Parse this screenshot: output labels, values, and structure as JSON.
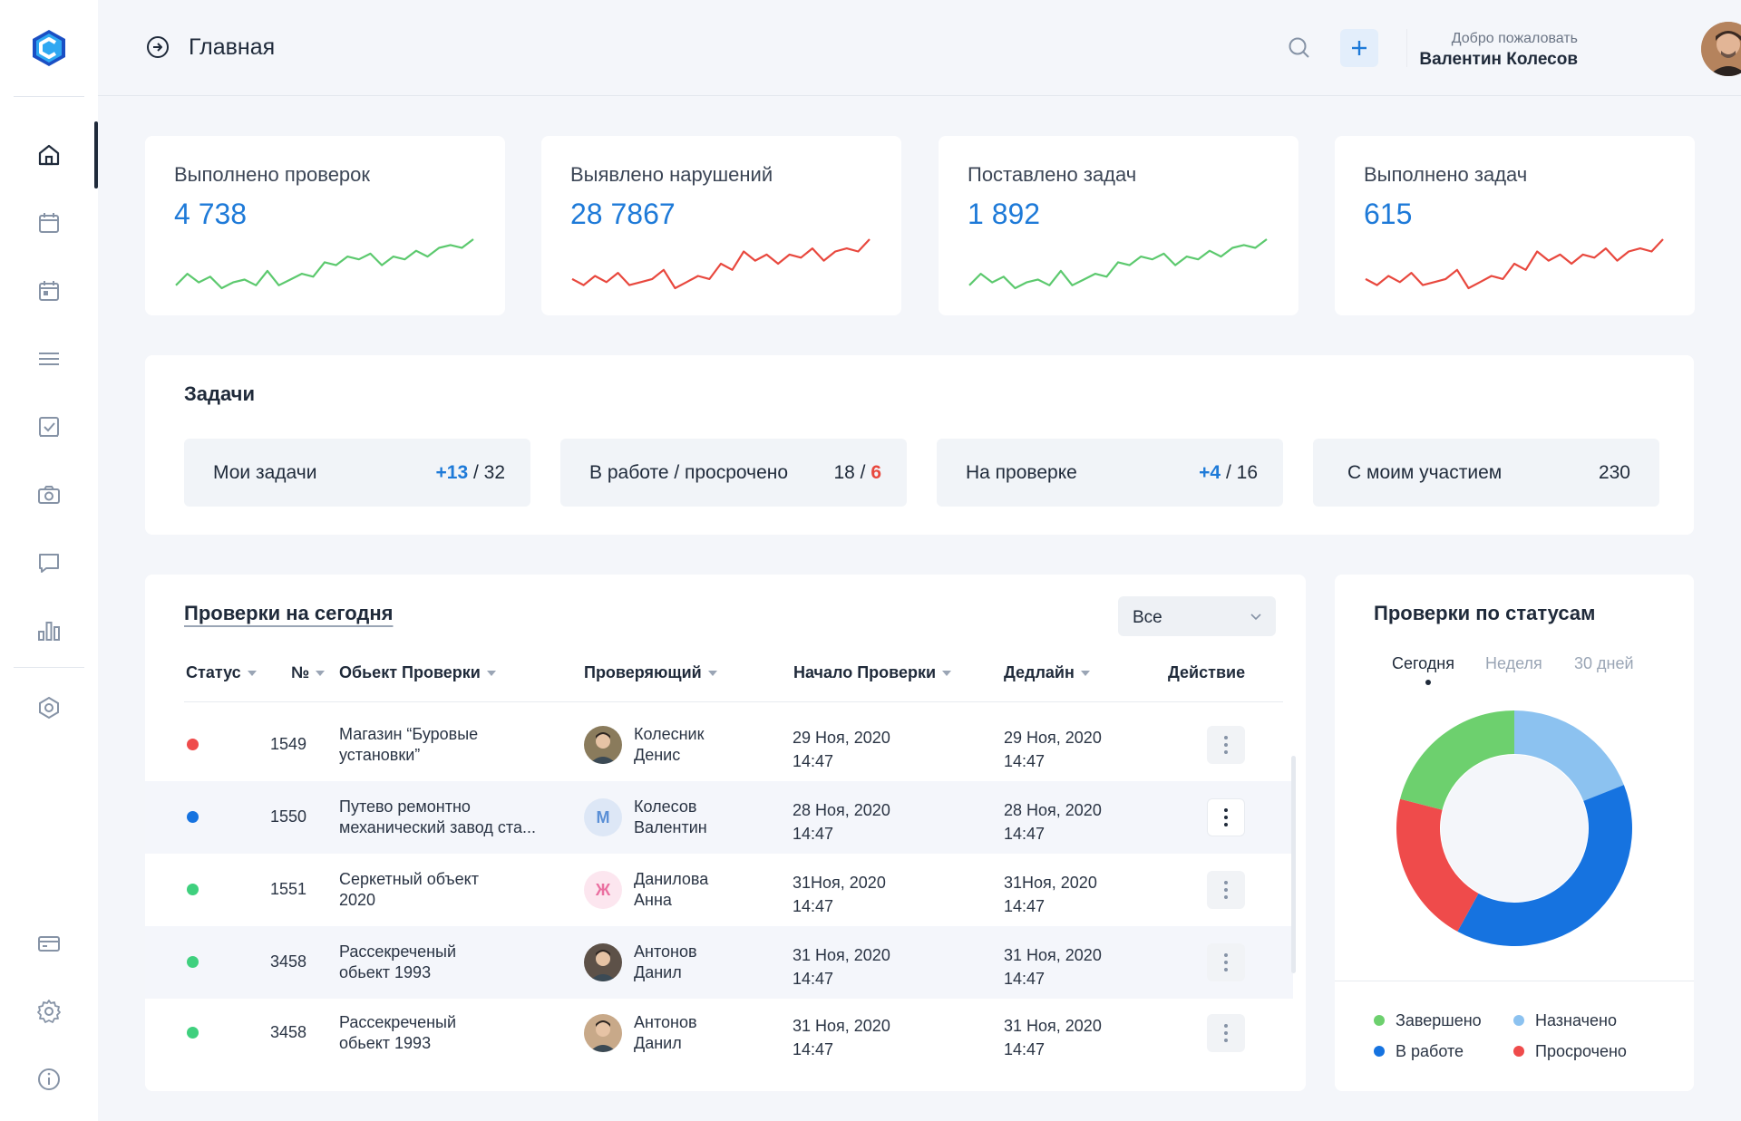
{
  "header": {
    "title": "Главная",
    "welcome": "Добро пожаловать",
    "username": "Валентин Колесов"
  },
  "stats": [
    {
      "label": "Выполнено проверок",
      "value": "4 738",
      "trend_color": "#5cc96e"
    },
    {
      "label": "Выявлено нарушений",
      "value": "28 7867",
      "trend_color": "#e8483e"
    },
    {
      "label": "Поставлено задач",
      "value": "1 892",
      "trend_color": "#5cc96e"
    },
    {
      "label": "Выполнено задач",
      "value": "615",
      "trend_color": "#e8483e"
    }
  ],
  "tasks": {
    "title": "Задачи",
    "items": [
      {
        "label": "Мои задачи",
        "delta": "+13",
        "sep": " / ",
        "total": "32"
      },
      {
        "label": "В работе / просрочено",
        "total": "18",
        "sep": " / ",
        "overdue": "6"
      },
      {
        "label": "На проверке",
        "delta": "+4",
        "sep": " / ",
        "total": "16"
      },
      {
        "label": "С моим участием",
        "total": "230"
      }
    ]
  },
  "checks": {
    "title": "Проверки на сегодня",
    "filter": "Все",
    "columns": {
      "status": "Статус",
      "number": "№",
      "object": "Обьект Проверки",
      "inspector": "Проверяющий",
      "start": "Начало Проверки",
      "deadline": "Дедлайн",
      "action": "Действие"
    },
    "rows": [
      {
        "status_color": "#ef4b4b",
        "number": "1549",
        "object1": "Магазин “Буровые",
        "object2": "установки”",
        "avatar_letter": "",
        "avatar_bg": "#8a7b5c",
        "name1": "Колесник",
        "name2": "Денис",
        "start1": "29 Ноя, 2020",
        "start2": "14:47",
        "deadline1": "29 Ноя, 2020",
        "deadline2": "14:47"
      },
      {
        "status_color": "#1673e0",
        "number": "1550",
        "object1": "Путево ремонтно",
        "object2": "механический завод ста...",
        "avatar_letter": "М",
        "avatar_bg": "#dde7f6",
        "avatar_fg": "#5a8fd6",
        "name1": "Колесов",
        "name2": "Валентин",
        "start1": "28 Ноя, 2020",
        "start2": "14:47",
        "deadline1": "28 Ноя, 2020",
        "deadline2": "14:47"
      },
      {
        "status_color": "#3fd07e",
        "number": "1551",
        "object1": "Серкетный объект",
        "object2": "2020",
        "avatar_letter": "Ж",
        "avatar_bg": "#fce6ef",
        "avatar_fg": "#ea6fa0",
        "name1": "Данилова",
        "name2": "Анна",
        "start1": "31Ноя, 2020",
        "start2": "14:47",
        "deadline1": "31Ноя, 2020",
        "deadline2": "14:47"
      },
      {
        "status_color": "#3fd07e",
        "number": "3458",
        "object1": "Рассекреченый",
        "object2": "обьект 1993",
        "avatar_letter": "",
        "avatar_bg": "#5d5148",
        "name1": "Антонов",
        "name2": "Данил",
        "start1": "31 Ноя, 2020",
        "start2": "14:47",
        "deadline1": "31 Ноя, 2020",
        "deadline2": "14:47"
      },
      {
        "status_color": "#3fd07e",
        "number": "3458",
        "object1": "Рассекреченый",
        "object2": "обьект 1993",
        "avatar_letter": "",
        "avatar_bg": "#c8a989",
        "name1": "Антонов",
        "name2": "Данил",
        "start1": "31 Ноя, 2020",
        "start2": "14:47",
        "deadline1": "31 Ноя, 2020",
        "deadline2": "14:47"
      }
    ]
  },
  "status_chart": {
    "title": "Проверки по статусам",
    "tabs": [
      "Сегодня",
      "Неделя",
      "30 дней"
    ],
    "active_tab": "Сегодня",
    "legend": [
      {
        "label": "Завершено",
        "color": "#6dd06e"
      },
      {
        "label": "Назначено",
        "color": "#8cc2f0"
      },
      {
        "label": "В работе",
        "color": "#1673e0"
      },
      {
        "label": "Просрочено",
        "color": "#ef4b4b"
      }
    ]
  },
  "chart_data": [
    {
      "type": "line",
      "title": "",
      "series": [
        {
          "values": [
            5,
            9,
            6,
            8,
            4,
            6,
            7,
            5,
            10,
            5,
            7,
            9,
            8,
            13,
            12,
            15,
            14,
            16,
            12,
            15,
            14,
            17,
            15,
            18,
            19,
            18,
            21
          ]
        }
      ]
    },
    {
      "type": "line",
      "title": "",
      "series": [
        {
          "values": [
            8,
            6,
            9,
            7,
            10,
            6,
            7,
            8,
            11,
            5,
            7,
            9,
            8,
            13,
            11,
            17,
            14,
            16,
            13,
            16,
            15,
            18,
            14,
            17,
            18,
            17,
            21
          ]
        }
      ]
    },
    {
      "type": "line",
      "title": "",
      "series": [
        {
          "values": [
            5,
            9,
            6,
            8,
            4,
            6,
            7,
            5,
            10,
            5,
            7,
            9,
            8,
            13,
            12,
            15,
            14,
            16,
            12,
            15,
            14,
            17,
            15,
            18,
            19,
            18,
            21
          ]
        }
      ]
    },
    {
      "type": "line",
      "title": "",
      "series": [
        {
          "values": [
            8,
            6,
            9,
            7,
            10,
            6,
            7,
            8,
            11,
            5,
            7,
            9,
            8,
            13,
            11,
            17,
            14,
            16,
            13,
            16,
            15,
            18,
            14,
            17,
            18,
            17,
            21
          ]
        }
      ]
    },
    {
      "type": "pie",
      "title": "Проверки по статусам",
      "categories": [
        "Назначено",
        "В работе",
        "Просрочено",
        "Завершено"
      ],
      "values": [
        19,
        39,
        21,
        21
      ]
    }
  ]
}
